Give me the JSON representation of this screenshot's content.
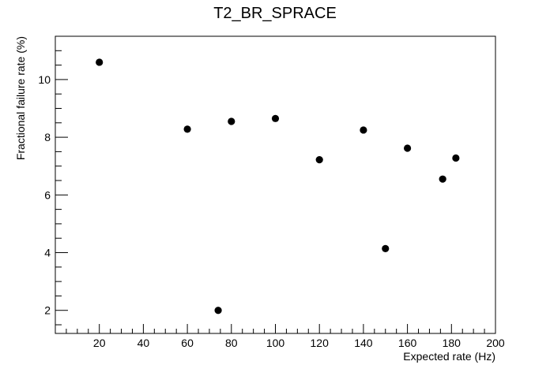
{
  "chart_data": {
    "type": "scatter",
    "title": "T2_BR_SPRACE",
    "xlabel": "Expected rate (Hz)",
    "ylabel": "Fractional failure rate (%)",
    "xlim": [
      0,
      200
    ],
    "ylim": [
      1.2,
      11.5
    ],
    "x_ticks": [
      20,
      40,
      60,
      80,
      100,
      120,
      140,
      160,
      180,
      200
    ],
    "y_ticks": [
      2,
      4,
      6,
      8,
      10
    ],
    "x_minor_step": 5,
    "y_minor_step": 0.5,
    "grid": false,
    "legend": "none",
    "marker_color": "#000000",
    "points": [
      {
        "x": 20,
        "y": 10.6
      },
      {
        "x": 60,
        "y": 8.28
      },
      {
        "x": 74,
        "y": 2.0
      },
      {
        "x": 80,
        "y": 8.55
      },
      {
        "x": 100,
        "y": 8.65
      },
      {
        "x": 120,
        "y": 7.22
      },
      {
        "x": 140,
        "y": 8.25
      },
      {
        "x": 150,
        "y": 4.14
      },
      {
        "x": 160,
        "y": 7.62
      },
      {
        "x": 176,
        "y": 6.55
      },
      {
        "x": 182,
        "y": 7.28
      }
    ]
  }
}
